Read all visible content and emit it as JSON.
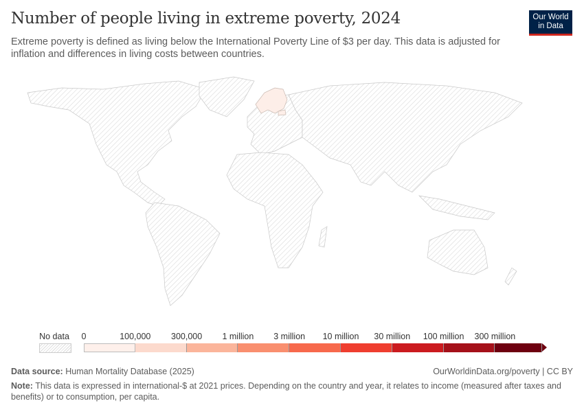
{
  "header": {
    "title": "Number of people living in extreme poverty, 2024",
    "subtitle": "Extreme poverty is defined as living below the International Poverty Line of $3 per day. This data is adjusted for inflation and differences in living costs between countries.",
    "logo_line1": "Our World",
    "logo_line2": "in Data"
  },
  "map": {
    "no_data_pattern": "hatched-gray",
    "highlighted_regions": [
      "Norway",
      "Sweden",
      "Finland",
      "Estonia"
    ],
    "highlight_color": "#fdeee8",
    "highlight_bin": "0–100,000"
  },
  "legend": {
    "no_data_label": "No data",
    "ticks": [
      "0",
      "100,000",
      "300,000",
      "1 million",
      "3 million",
      "10 million",
      "30 million",
      "100 million",
      "300 million"
    ],
    "colors": [
      "#fef0eb",
      "#fcdacd",
      "#fbb59b",
      "#f98f6f",
      "#f7694c",
      "#ef3e2f",
      "#cb1b1f",
      "#a5111a",
      "#6e0010"
    ]
  },
  "footer": {
    "source_label": "Data source:",
    "source": "Human Mortality Database (2025)",
    "link": "OurWorldinData.org/poverty | CC BY",
    "note_label": "Note:",
    "note": "This data is expressed in international-$ at 2021 prices. Depending on the country and year, it relates to income (measured after taxes and benefits) or to consumption, per capita."
  }
}
